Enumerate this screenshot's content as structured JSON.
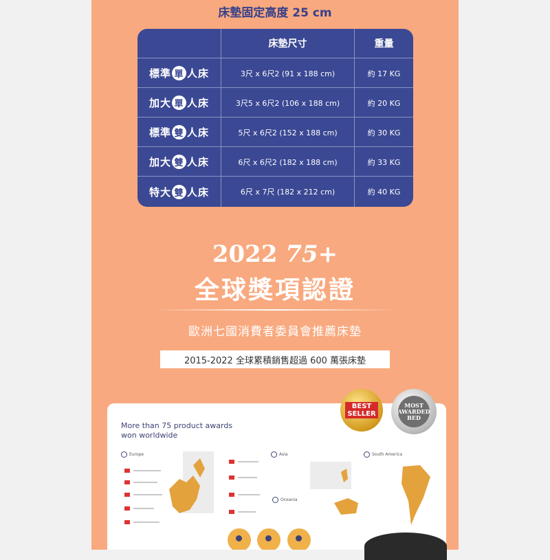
{
  "top_title": "床墊固定高度 25 cm",
  "table": {
    "headers": [
      "",
      "床墊尺寸",
      "重量"
    ],
    "rows": [
      {
        "name_pre": "標準",
        "name_circle": "單",
        "name_post": "人床",
        "dims": "3尺 x 6尺2 (91 x 188 cm)",
        "weight": "約 17 KG"
      },
      {
        "name_pre": "加大",
        "name_circle": "單",
        "name_post": "人床",
        "dims": "3尺5 x 6尺2 (106 x 188 cm)",
        "weight": "約 20 KG"
      },
      {
        "name_pre": "標準",
        "name_circle": "雙",
        "name_post": "人床",
        "dims": "5尺 x 6尺2 (152 x 188 cm)",
        "weight": "約 30 KG"
      },
      {
        "name_pre": "加大",
        "name_circle": "雙",
        "name_post": "人床",
        "dims": "6尺 x 6尺2 (182 x 188 cm)",
        "weight": "約 33 KG"
      },
      {
        "name_pre": "特大",
        "name_circle": "雙",
        "name_post": "人床",
        "dims": "6尺 x 7尺 (182 x 212 cm)",
        "weight": "約 40 KG"
      }
    ]
  },
  "headline": {
    "year": "2022",
    "count": "75+",
    "award": "全球獎項認證",
    "subline": "歐洲七國消費者委員會推薦床墊",
    "stat": "2015-2022 全球累積銷售超過 600 萬張床墊"
  },
  "card": {
    "title_line1": "More than 75 product awards",
    "title_line2": "won worldwide",
    "regions": [
      "Europe",
      "Asia",
      "South America",
      "Oceania"
    ]
  },
  "badges": {
    "best_seller": [
      "BEST",
      "SELLER"
    ],
    "most_awarded": [
      "MOST",
      "AWARDED",
      "BED"
    ]
  },
  "colors": {
    "background": "#f8a97f",
    "table": "#3b4893",
    "accent": "#f0b14a"
  }
}
